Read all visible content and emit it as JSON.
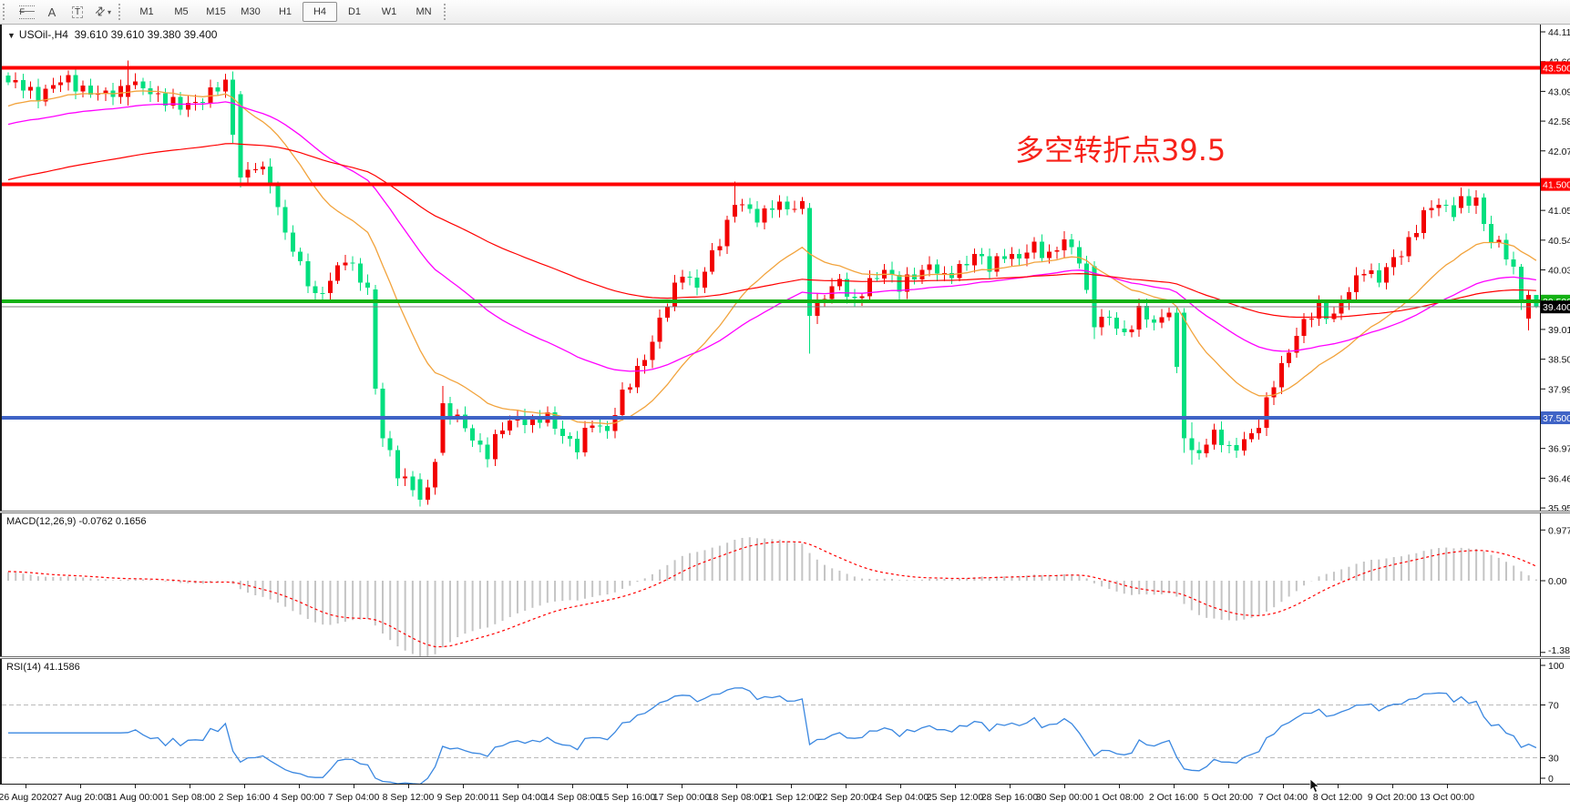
{
  "toolbar": {
    "line_studies": [
      {
        "name": "fibonacci-retracement",
        "glyph": "F"
      },
      {
        "name": "text",
        "glyph": "A"
      },
      {
        "name": "text-label",
        "glyph": "T"
      },
      {
        "name": "arrows",
        "glyph": "⇅"
      }
    ],
    "dropdown_caret": "▾",
    "timeframes": [
      "M1",
      "M5",
      "M15",
      "M30",
      "H1",
      "H4",
      "D1",
      "W1",
      "MN"
    ],
    "active_timeframe": "H4"
  },
  "chart": {
    "title": {
      "dropdown_glyph": "▼",
      "symbol_period": "USOil-,H4",
      "ohlc_text": "39.610 39.610 39.380 39.400"
    },
    "annotation": {
      "text": "多空转折点39.5",
      "color": "#F72119"
    }
  },
  "chart_data": {
    "type": "candlestick",
    "symbol": "USOil-",
    "timeframe": "H4",
    "last_candle": {
      "open": 39.61,
      "high": 39.61,
      "low": 39.38,
      "close": 39.4
    },
    "bars_total": 205,
    "up_color": "#F20000",
    "down_color": "#00DF7F",
    "price_axis": {
      "ticks": [
        44.115,
        43.605,
        43.095,
        42.585,
        42.075,
        41.055,
        40.545,
        40.035,
        39.015,
        38.505,
        37.995,
        36.975,
        36.465,
        35.955
      ],
      "min": 35.955,
      "max": 44.115
    },
    "hlines": [
      {
        "price": 43.5,
        "label": "43.500",
        "color": "#FF0000",
        "width": 4
      },
      {
        "price": 41.5,
        "label": "41.500",
        "color": "#FF0000",
        "width": 4
      },
      {
        "price": 39.5,
        "label": "39.500",
        "color": "#14B114",
        "width": 4
      },
      {
        "price": 37.5,
        "label": "37.500",
        "color": "#3F63C6",
        "width": 4
      }
    ],
    "current_price": {
      "value": 39.4,
      "label": "39.400",
      "line_color": "#808080",
      "badge_color": "#000000"
    },
    "close_anchors": [
      [
        0,
        43.25
      ],
      [
        4,
        43.05
      ],
      [
        8,
        43.3
      ],
      [
        12,
        43.0
      ],
      [
        16,
        43.2
      ],
      [
        20,
        43.05
      ],
      [
        23,
        42.8
      ],
      [
        26,
        43.0
      ],
      [
        29,
        43.2
      ],
      [
        31,
        41.62
      ],
      [
        33,
        41.8
      ],
      [
        35,
        41.55
      ],
      [
        37,
        40.7
      ],
      [
        39,
        40.05
      ],
      [
        41,
        39.6
      ],
      [
        43,
        39.85
      ],
      [
        45,
        40.2
      ],
      [
        47,
        39.95
      ],
      [
        48,
        39.7
      ],
      [
        50,
        37.15
      ],
      [
        52,
        36.6
      ],
      [
        54,
        36.3
      ],
      [
        56,
        36.25
      ],
      [
        57,
        36.85
      ],
      [
        58,
        37.75
      ],
      [
        60,
        37.45
      ],
      [
        62,
        37.15
      ],
      [
        64,
        36.9
      ],
      [
        66,
        37.3
      ],
      [
        68,
        37.55
      ],
      [
        70,
        37.4
      ],
      [
        72,
        37.5
      ],
      [
        74,
        37.25
      ],
      [
        76,
        36.95
      ],
      [
        78,
        37.45
      ],
      [
        80,
        37.3
      ],
      [
        82,
        37.85
      ],
      [
        84,
        38.35
      ],
      [
        86,
        38.8
      ],
      [
        88,
        39.45
      ],
      [
        90,
        40.05
      ],
      [
        92,
        39.7
      ],
      [
        94,
        40.3
      ],
      [
        96,
        40.85
      ],
      [
        98,
        41.1
      ],
      [
        100,
        40.95
      ],
      [
        102,
        41.15
      ],
      [
        104,
        41.05
      ],
      [
        106,
        41.2
      ],
      [
        107,
        39.25
      ],
      [
        109,
        39.55
      ],
      [
        111,
        39.9
      ],
      [
        113,
        39.45
      ],
      [
        115,
        39.8
      ],
      [
        117,
        40.1
      ],
      [
        119,
        39.7
      ],
      [
        121,
        39.95
      ],
      [
        123,
        40.15
      ],
      [
        125,
        39.85
      ],
      [
        127,
        40.1
      ],
      [
        129,
        40.3
      ],
      [
        131,
        40.05
      ],
      [
        133,
        40.35
      ],
      [
        135,
        40.2
      ],
      [
        137,
        40.45
      ],
      [
        139,
        40.3
      ],
      [
        141,
        40.5
      ],
      [
        143,
        40.25
      ],
      [
        145,
        39.05
      ],
      [
        147,
        39.2
      ],
      [
        149,
        38.95
      ],
      [
        151,
        39.3
      ],
      [
        153,
        39.1
      ],
      [
        155,
        39.4
      ],
      [
        157,
        37.15
      ],
      [
        159,
        36.95
      ],
      [
        161,
        37.25
      ],
      [
        163,
        36.9
      ],
      [
        165,
        37.15
      ],
      [
        167,
        37.35
      ],
      [
        169,
        38.1
      ],
      [
        171,
        38.7
      ],
      [
        173,
        39.1
      ],
      [
        175,
        39.4
      ],
      [
        177,
        39.25
      ],
      [
        179,
        39.65
      ],
      [
        181,
        40.1
      ],
      [
        183,
        39.85
      ],
      [
        185,
        40.2
      ],
      [
        187,
        40.55
      ],
      [
        189,
        40.95
      ],
      [
        191,
        41.2
      ],
      [
        193,
        41.05
      ],
      [
        194,
        41.3
      ],
      [
        195,
        41.15
      ],
      [
        196,
        41.25
      ],
      [
        197,
        40.85
      ],
      [
        198,
        40.6
      ],
      [
        199,
        40.55
      ],
      [
        200,
        40.25
      ],
      [
        201,
        40.0
      ],
      [
        202,
        39.55
      ],
      [
        203,
        39.61
      ],
      [
        204,
        39.4
      ]
    ],
    "candle_overrides": [
      [
        16,
        43.0,
        43.62,
        42.85,
        43.2
      ],
      [
        31,
        43.05,
        43.1,
        41.45,
        41.62
      ],
      [
        49,
        39.7,
        39.78,
        37.9,
        38.0
      ],
      [
        50,
        38.0,
        38.1,
        37.0,
        37.15
      ],
      [
        55,
        36.45,
        36.55,
        35.98,
        36.1
      ],
      [
        58,
        36.9,
        38.05,
        36.85,
        37.75
      ],
      [
        97,
        40.95,
        41.55,
        40.85,
        41.15
      ],
      [
        107,
        41.1,
        41.18,
        38.6,
        39.25
      ],
      [
        145,
        40.1,
        40.18,
        38.85,
        39.05
      ],
      [
        157,
        39.3,
        39.38,
        36.9,
        37.15
      ],
      [
        158,
        37.15,
        37.42,
        36.7,
        36.95
      ],
      [
        194,
        41.1,
        41.45,
        41.0,
        41.3
      ],
      [
        199,
        40.5,
        40.62,
        40.42,
        40.55
      ],
      [
        203,
        39.2,
        39.68,
        39.0,
        39.61
      ],
      [
        204,
        39.61,
        39.61,
        39.38,
        39.4
      ]
    ],
    "moving_averages": [
      {
        "name": "ma-fast",
        "period": 20,
        "seed": 42.8,
        "color": "#F2A33C",
        "width": 1.3
      },
      {
        "name": "ma-mid",
        "period": 48,
        "seed": 42.5,
        "color": "#FF00FF",
        "width": 1.3
      },
      {
        "name": "ma-slow",
        "period": 110,
        "seed": 41.55,
        "color": "#FF0000",
        "width": 1.2
      }
    ],
    "indicators": {
      "macd": {
        "label": "MACD(12,26,9) -0.0762 0.1656",
        "main_value": -0.0762,
        "signal_value": 0.1656,
        "axis_labels": [
          "0.9779",
          "0.00",
          "-1.382"
        ],
        "axis_values": [
          0.9779,
          0.0,
          -1.382
        ],
        "histogram_color": "#C4C4C4",
        "signal_color": "#FF0000",
        "seed_offset": 0.18
      },
      "rsi": {
        "label": "RSI(14) 41.1586",
        "value": 41.1586,
        "axis_labels": [
          "100",
          "70",
          "30",
          "0"
        ],
        "axis_values": [
          100,
          70,
          30,
          0
        ],
        "levels": [
          70,
          30
        ],
        "line_color": "#3A87E0",
        "level_color": "#BABABA"
      }
    },
    "x_labels": [
      "26 Aug 2020",
      "27 Aug 20:00",
      "31 Aug 00:00",
      "1 Sep 08:00",
      "2 Sep 16:00",
      "4 Sep 00:00",
      "7 Sep 04:00",
      "8 Sep 12:00",
      "9 Sep 20:00",
      "11 Sep 04:00",
      "14 Sep 08:00",
      "15 Sep 16:00",
      "17 Sep 00:00",
      "18 Sep 08:00",
      "21 Sep 12:00",
      "22 Sep 20:00",
      "24 Sep 04:00",
      "25 Sep 12:00",
      "28 Sep 16:00",
      "30 Sep 00:00",
      "1 Oct 08:00",
      "2 Oct 16:00",
      "5 Oct 20:00",
      "7 Oct 04:00",
      "8 Oct 12:00",
      "9 Oct 20:00",
      "13 Oct 00:00"
    ]
  }
}
